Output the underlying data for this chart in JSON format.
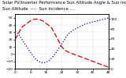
{
  "title_line1": "Solar PV/Inverter Performance Sun Altitude Angle & Sun Incidence Angle on PV Panels",
  "title_line2": "Sun Altitude  ----  Sun Incidence ....",
  "x_values": [
    0,
    1,
    2,
    3,
    4,
    5,
    6,
    7,
    8,
    9,
    10,
    11,
    12,
    13,
    14,
    15,
    16,
    17,
    18,
    19,
    20,
    21,
    22,
    23,
    24,
    25,
    26,
    27,
    28,
    29,
    30,
    31,
    32,
    33,
    34,
    35,
    36,
    37,
    38,
    39,
    40,
    41,
    42,
    43,
    44,
    45,
    46,
    47,
    48
  ],
  "altitude_y": [
    20,
    25,
    30,
    35,
    38,
    40,
    42,
    44,
    46,
    47,
    48,
    48,
    48,
    47,
    46,
    44,
    42,
    40,
    38,
    35,
    30,
    25,
    20,
    15,
    10,
    7,
    5,
    3,
    2,
    1,
    0,
    -1,
    -2,
    -3,
    -4,
    -5,
    -6,
    -7,
    -8,
    -9,
    -10,
    -11,
    -12,
    -13,
    -14,
    -15,
    -16,
    -17,
    -18
  ],
  "incidence_y": [
    75,
    72,
    68,
    62,
    56,
    50,
    44,
    38,
    32,
    27,
    22,
    18,
    15,
    13,
    12,
    12,
    13,
    15,
    18,
    22,
    27,
    32,
    38,
    44,
    50,
    56,
    62,
    68,
    72,
    75,
    78,
    80,
    82,
    84,
    86,
    88,
    90,
    91,
    92,
    93,
    94,
    95,
    96,
    97,
    98,
    99,
    100,
    101,
    102
  ],
  "line1_color": "#dd0000",
  "line2_color": "#0000cc",
  "background": "#ffffff",
  "ylim_left": [
    -20,
    55
  ],
  "ylim_right": [
    0,
    110
  ],
  "xlim": [
    0,
    48
  ],
  "yticks_left": [
    -20,
    -10,
    0,
    10,
    20,
    30,
    40,
    50
  ],
  "yticks_right": [
    0,
    20,
    40,
    60,
    80,
    100
  ],
  "xticks": [
    0,
    8,
    16,
    24,
    32,
    40,
    48
  ],
  "xtick_labels": [
    "0",
    "8",
    "16",
    "24",
    "32",
    "40",
    "48"
  ],
  "title_fontsize": 3.8,
  "tick_fontsize": 3.2,
  "linewidth": 0.9
}
